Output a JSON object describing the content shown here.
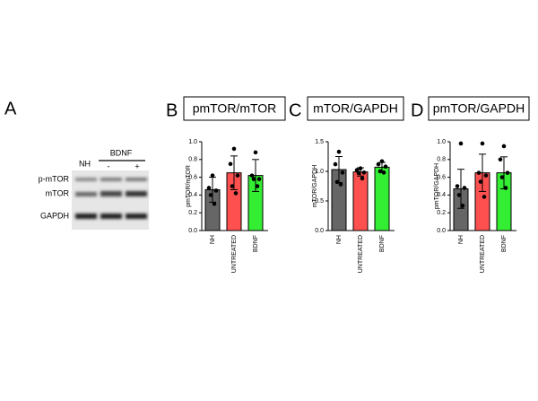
{
  "panel_labels": [
    "A",
    "B",
    "C",
    "D"
  ],
  "blot": {
    "group_label": "BDNF",
    "lane_labels": [
      "NH",
      "-",
      "+"
    ],
    "row_labels": [
      "p-mTOR",
      "mTOR",
      "GAPDH"
    ]
  },
  "chart_data": [
    {
      "type": "bar",
      "title": "pmTOR/mTOR",
      "y_label": "pmTOR/mTOR",
      "categories": [
        "NH",
        "UNTREATED",
        "BDNF"
      ],
      "colors": [
        "#666666",
        "#ff5050",
        "#33ee33"
      ],
      "values": [
        0.46,
        0.65,
        0.62
      ],
      "errors": [
        0.14,
        0.19,
        0.18
      ],
      "points": [
        [
          0.62,
          0.48,
          0.45,
          0.4,
          0.3
        ],
        [
          0.92,
          0.75,
          0.62,
          0.5,
          0.42
        ],
        [
          0.88,
          0.62,
          0.58,
          0.58,
          0.5
        ]
      ],
      "ylim": [
        0,
        1.0
      ],
      "yticks": [
        {
          "value": 0,
          "label": "0.0"
        },
        0.2,
        0.4,
        0.6,
        0.8,
        {
          "value": 1,
          "label": "1.0"
        }
      ]
    },
    {
      "type": "bar",
      "title": "mTOR/GAPDH",
      "y_label": "mTOR/GAPDH",
      "categories": [
        "NH",
        "UNTREATED",
        "BDNF"
      ],
      "colors": [
        "#666666",
        "#ff5050",
        "#33ee33"
      ],
      "values": [
        1.03,
        0.99,
        1.07
      ],
      "errors": [
        0.22,
        0.07,
        0.08
      ],
      "points": [
        [
          1.33,
          1.12,
          0.98,
          0.82,
          0.78
        ],
        [
          1.05,
          1.02,
          0.98,
          0.97,
          0.88
        ],
        [
          1.17,
          1.12,
          1.08,
          1.0,
          0.98
        ]
      ],
      "ylim": [
        0,
        1.5
      ],
      "yticks": [
        {
          "value": 0,
          "label": "0.0"
        },
        0.5,
        {
          "value": 1,
          "label": "1.0"
        },
        1.5
      ]
    },
    {
      "type": "bar",
      "title": "pmTOR/GAPDH",
      "y_label": "pmTOR/GAPDH",
      "categories": [
        "NH",
        "UNTREATED",
        "BDNF"
      ],
      "colors": [
        "#666666",
        "#ff5050",
        "#33ee33"
      ],
      "values": [
        0.47,
        0.65,
        0.65
      ],
      "errors": [
        0.22,
        0.21,
        0.18
      ],
      "points": [
        [
          0.98,
          0.5,
          0.48,
          0.4,
          0.28
        ],
        [
          0.98,
          0.65,
          0.62,
          0.55,
          0.38
        ],
        [
          0.95,
          0.8,
          0.65,
          0.6,
          0.48
        ]
      ],
      "ylim": [
        0,
        1.0
      ],
      "yticks": [
        {
          "value": 0,
          "label": "0.0"
        },
        0.2,
        0.4,
        0.6,
        0.8,
        {
          "value": 1,
          "label": "1.0"
        }
      ]
    }
  ]
}
